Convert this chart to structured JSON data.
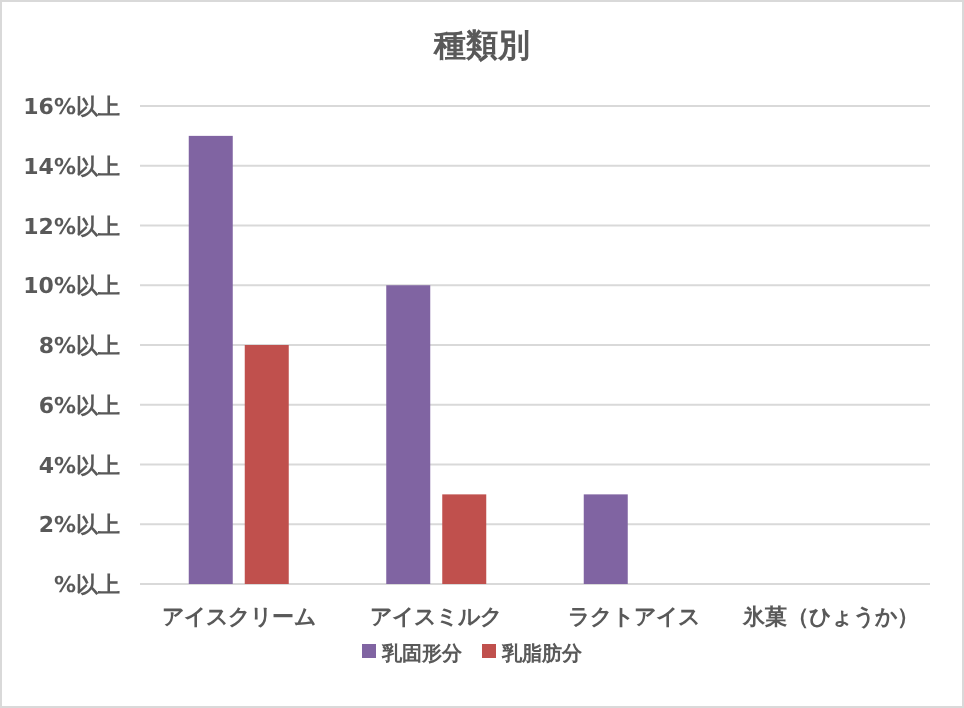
{
  "chart_data": {
    "type": "bar",
    "title": "種類別",
    "categories": [
      "アイスクリーム",
      "アイスミルク",
      "ラクトアイス",
      "氷菓（ひょうか）"
    ],
    "series": [
      {
        "name": "乳固形分",
        "color": "#8064a2",
        "values": [
          15,
          10,
          3,
          0
        ]
      },
      {
        "name": "乳脂肪分",
        "color": "#c0504d",
        "values": [
          8,
          3,
          0,
          0
        ]
      }
    ],
    "ylim": [
      0,
      16
    ],
    "yticks": [
      {
        "value": 0,
        "label": "%以上"
      },
      {
        "value": 2,
        "label": "2%以上"
      },
      {
        "value": 4,
        "label": "4%以上"
      },
      {
        "value": 6,
        "label": "6%以上"
      },
      {
        "value": 8,
        "label": "8%以上"
      },
      {
        "value": 10,
        "label": "10%以上"
      },
      {
        "value": 12,
        "label": "12%以上"
      },
      {
        "value": 14,
        "label": "14%以上"
      },
      {
        "value": 16,
        "label": "16%以上"
      }
    ],
    "grid": "y",
    "legend": "bottom"
  }
}
